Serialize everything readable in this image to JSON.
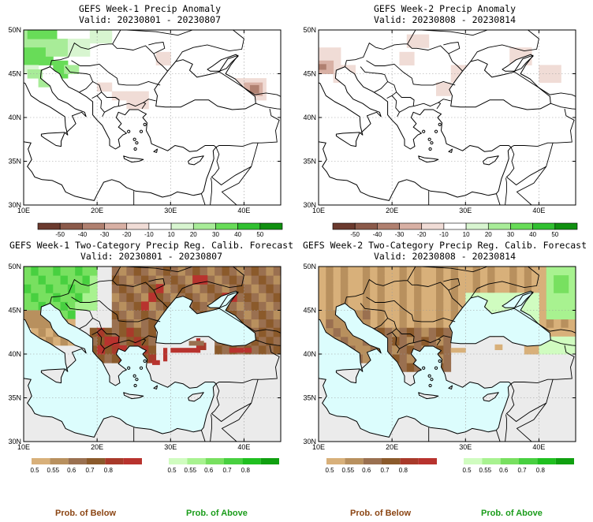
{
  "panels": [
    {
      "id": "week1-anomaly",
      "title": "GEFS Week-1 Precip Anomaly",
      "valid": "Valid: 20230801 - 20230807",
      "kind": "anomaly"
    },
    {
      "id": "week2-anomaly",
      "title": "GEFS Week-2 Precip Anomaly",
      "valid": "Valid: 20230808 - 20230814",
      "kind": "anomaly"
    },
    {
      "id": "week1-twocat",
      "title": "GEFS Week-1 Two-Category Precip Reg. Calib. Forecast",
      "valid": "Valid: 20230801 - 20230807",
      "kind": "prob"
    },
    {
      "id": "week2-twocat",
      "title": "GEFS Week-2 Two-Category Precip Reg. Calib. Forecast",
      "valid": "Valid: 20230808 - 20230814",
      "kind": "prob"
    }
  ],
  "axes": {
    "lat_labels": [
      "50N",
      "45N",
      "40N",
      "35N",
      "30N"
    ],
    "lon_labels": [
      "10E",
      "20E",
      "30E",
      "40E"
    ]
  },
  "anomaly_colorbar": {
    "labels": [
      "-50",
      "-40",
      "-30",
      "-20",
      "-10",
      "10",
      "20",
      "30",
      "40",
      "50"
    ],
    "colors": [
      "#6b3a2e",
      "#8b5a4a",
      "#b08070",
      "#d8b0a4",
      "#f0dcd6",
      "#ffffff",
      "#d8f5d0",
      "#a8ec98",
      "#68dc58",
      "#30c030",
      "#109010"
    ]
  },
  "prob_below_colorbar": {
    "labels": [
      "0.5",
      "0.55",
      "0.6",
      "0.7",
      "0.8"
    ],
    "colors": [
      "#d8b07a",
      "#b8905e",
      "#9a7050",
      "#8b5a2b",
      "#a83a2a",
      "#b8332e"
    ]
  },
  "prob_above_colorbar": {
    "labels": [
      "0.5",
      "0.55",
      "0.6",
      "0.7",
      "0.8"
    ],
    "colors": [
      "#d0fcc0",
      "#a8f290",
      "#78e060",
      "#48d040",
      "#20c020",
      "#10a010"
    ]
  },
  "legend": {
    "below_caption": "Prob. of Below",
    "above_caption": "Prob. of Above",
    "below_color": "#8b4513",
    "above_color": "#1a9c1a"
  },
  "map_colors": {
    "sea": "#dcfdfd",
    "land_gray": "#ebebeb",
    "land_white": "#ffffff"
  }
}
